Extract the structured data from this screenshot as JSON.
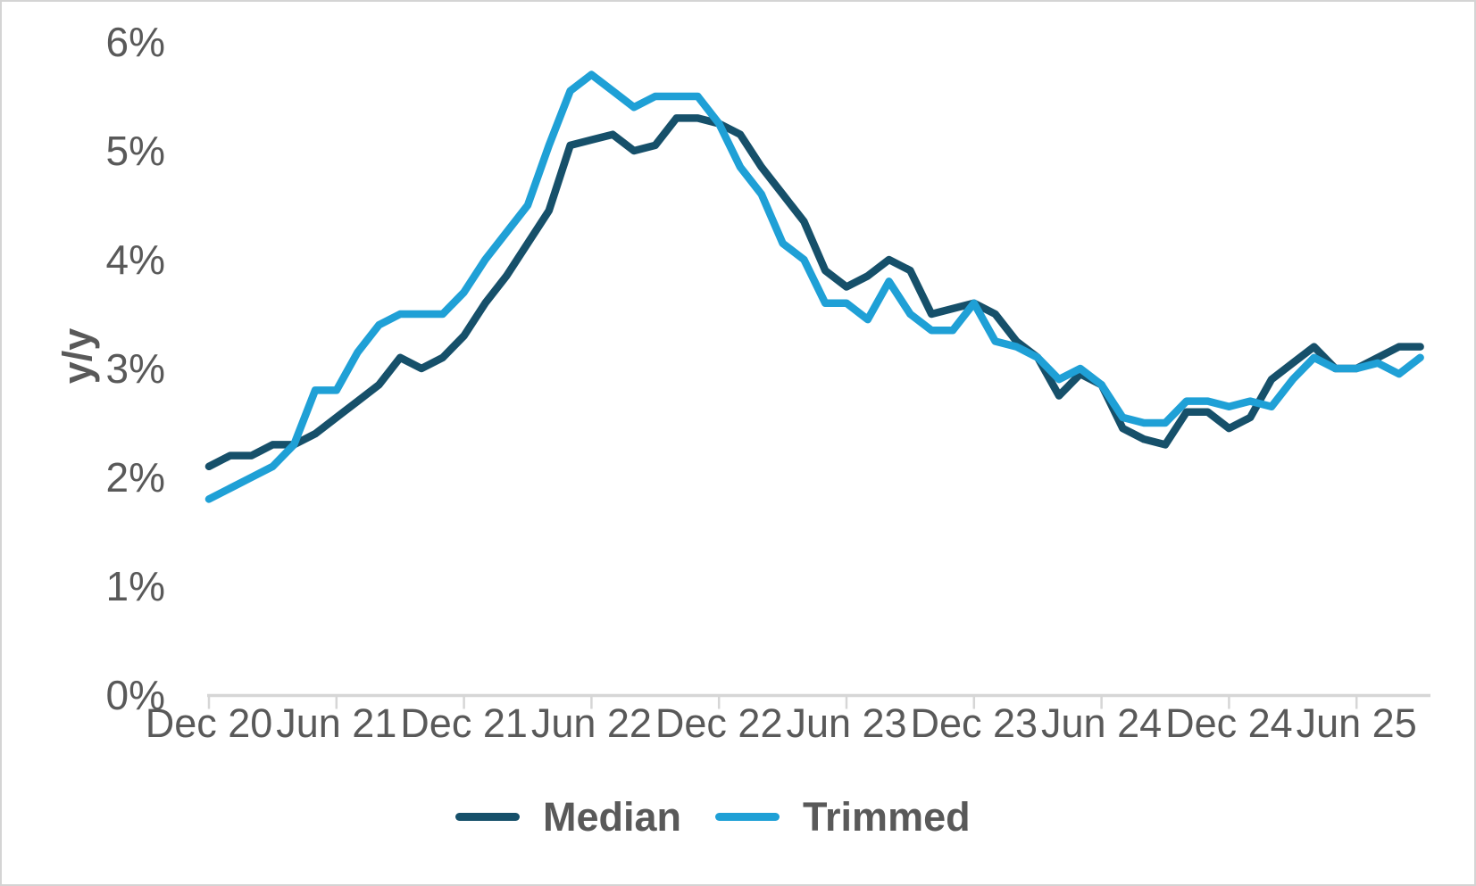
{
  "figure": {
    "background_color": "#ffffff",
    "border_color": "#d4d4d4",
    "text_color": "#595959",
    "axis_line_color": "#d6d6d6"
  },
  "chart_data": {
    "type": "line",
    "title": "",
    "xlabel": "",
    "ylabel": "y/y",
    "grid": "off",
    "legend_position": "bottom",
    "y_axis": {
      "min": 0,
      "max": 6,
      "step": 1,
      "tick_labels": [
        "0%",
        "1%",
        "2%",
        "3%",
        "4%",
        "5%",
        "6%"
      ]
    },
    "x_tick_labels": [
      "Dec 20",
      "Jun 21",
      "Dec 21",
      "Jun 22",
      "Dec 22",
      "Jun 23",
      "Dec 23",
      "Jun 24",
      "Dec 24",
      "Jun 25"
    ],
    "x_tick_positions": [
      0,
      6,
      12,
      18,
      24,
      30,
      36,
      42,
      48,
      54
    ],
    "x": [
      "Dec-20",
      "Jan-21",
      "Feb-21",
      "Mar-21",
      "Apr-21",
      "May-21",
      "Jun-21",
      "Jul-21",
      "Aug-21",
      "Sep-21",
      "Oct-21",
      "Nov-21",
      "Dec-21",
      "Jan-22",
      "Feb-22",
      "Mar-22",
      "Apr-22",
      "May-22",
      "Jun-22",
      "Jul-22",
      "Aug-22",
      "Sep-22",
      "Oct-22",
      "Nov-22",
      "Dec-22",
      "Jan-23",
      "Feb-23",
      "Mar-23",
      "Apr-23",
      "May-23",
      "Jun-23",
      "Jul-23",
      "Aug-23",
      "Sep-23",
      "Oct-23",
      "Nov-23",
      "Dec-23",
      "Jan-24",
      "Feb-24",
      "Mar-24",
      "Apr-24",
      "May-24",
      "Jun-24",
      "Jul-24",
      "Aug-24",
      "Sep-24",
      "Oct-24",
      "Nov-24",
      "Dec-24",
      "Jan-25",
      "Feb-25",
      "Mar-25",
      "Apr-25",
      "May-25",
      "Jun-25",
      "Jul-25",
      "Aug-25",
      "Sep-25"
    ],
    "series": [
      {
        "name": "Median",
        "color": "#16506a",
        "values": [
          2.1,
          2.2,
          2.2,
          2.3,
          2.3,
          2.4,
          2.55,
          2.7,
          2.85,
          3.1,
          3.0,
          3.1,
          3.3,
          3.6,
          3.85,
          4.15,
          4.45,
          5.05,
          5.1,
          5.15,
          5.0,
          5.05,
          5.3,
          5.3,
          5.25,
          5.15,
          4.85,
          4.6,
          4.35,
          3.9,
          3.75,
          3.85,
          4.0,
          3.9,
          3.5,
          3.55,
          3.6,
          3.5,
          3.25,
          3.1,
          2.75,
          2.95,
          2.85,
          2.45,
          2.35,
          2.3,
          2.6,
          2.6,
          2.45,
          2.55,
          2.9,
          3.05,
          3.2,
          3.0,
          3.0,
          3.1,
          3.2,
          3.2
        ]
      },
      {
        "name": "Trimmed",
        "color": "#1fa0d6",
        "values": [
          1.8,
          1.9,
          2.0,
          2.1,
          2.3,
          2.8,
          2.8,
          3.15,
          3.4,
          3.5,
          3.5,
          3.5,
          3.7,
          4.0,
          4.25,
          4.5,
          5.05,
          5.55,
          5.7,
          5.55,
          5.4,
          5.5,
          5.5,
          5.5,
          5.25,
          4.85,
          4.6,
          4.15,
          4.0,
          3.6,
          3.6,
          3.45,
          3.8,
          3.5,
          3.35,
          3.35,
          3.6,
          3.25,
          3.2,
          3.1,
          2.9,
          3.0,
          2.85,
          2.55,
          2.5,
          2.5,
          2.7,
          2.7,
          2.65,
          2.7,
          2.65,
          2.9,
          3.1,
          3.0,
          3.0,
          3.05,
          2.95,
          3.1
        ]
      }
    ]
  },
  "legend": {
    "items": [
      "Median",
      "Trimmed"
    ]
  }
}
